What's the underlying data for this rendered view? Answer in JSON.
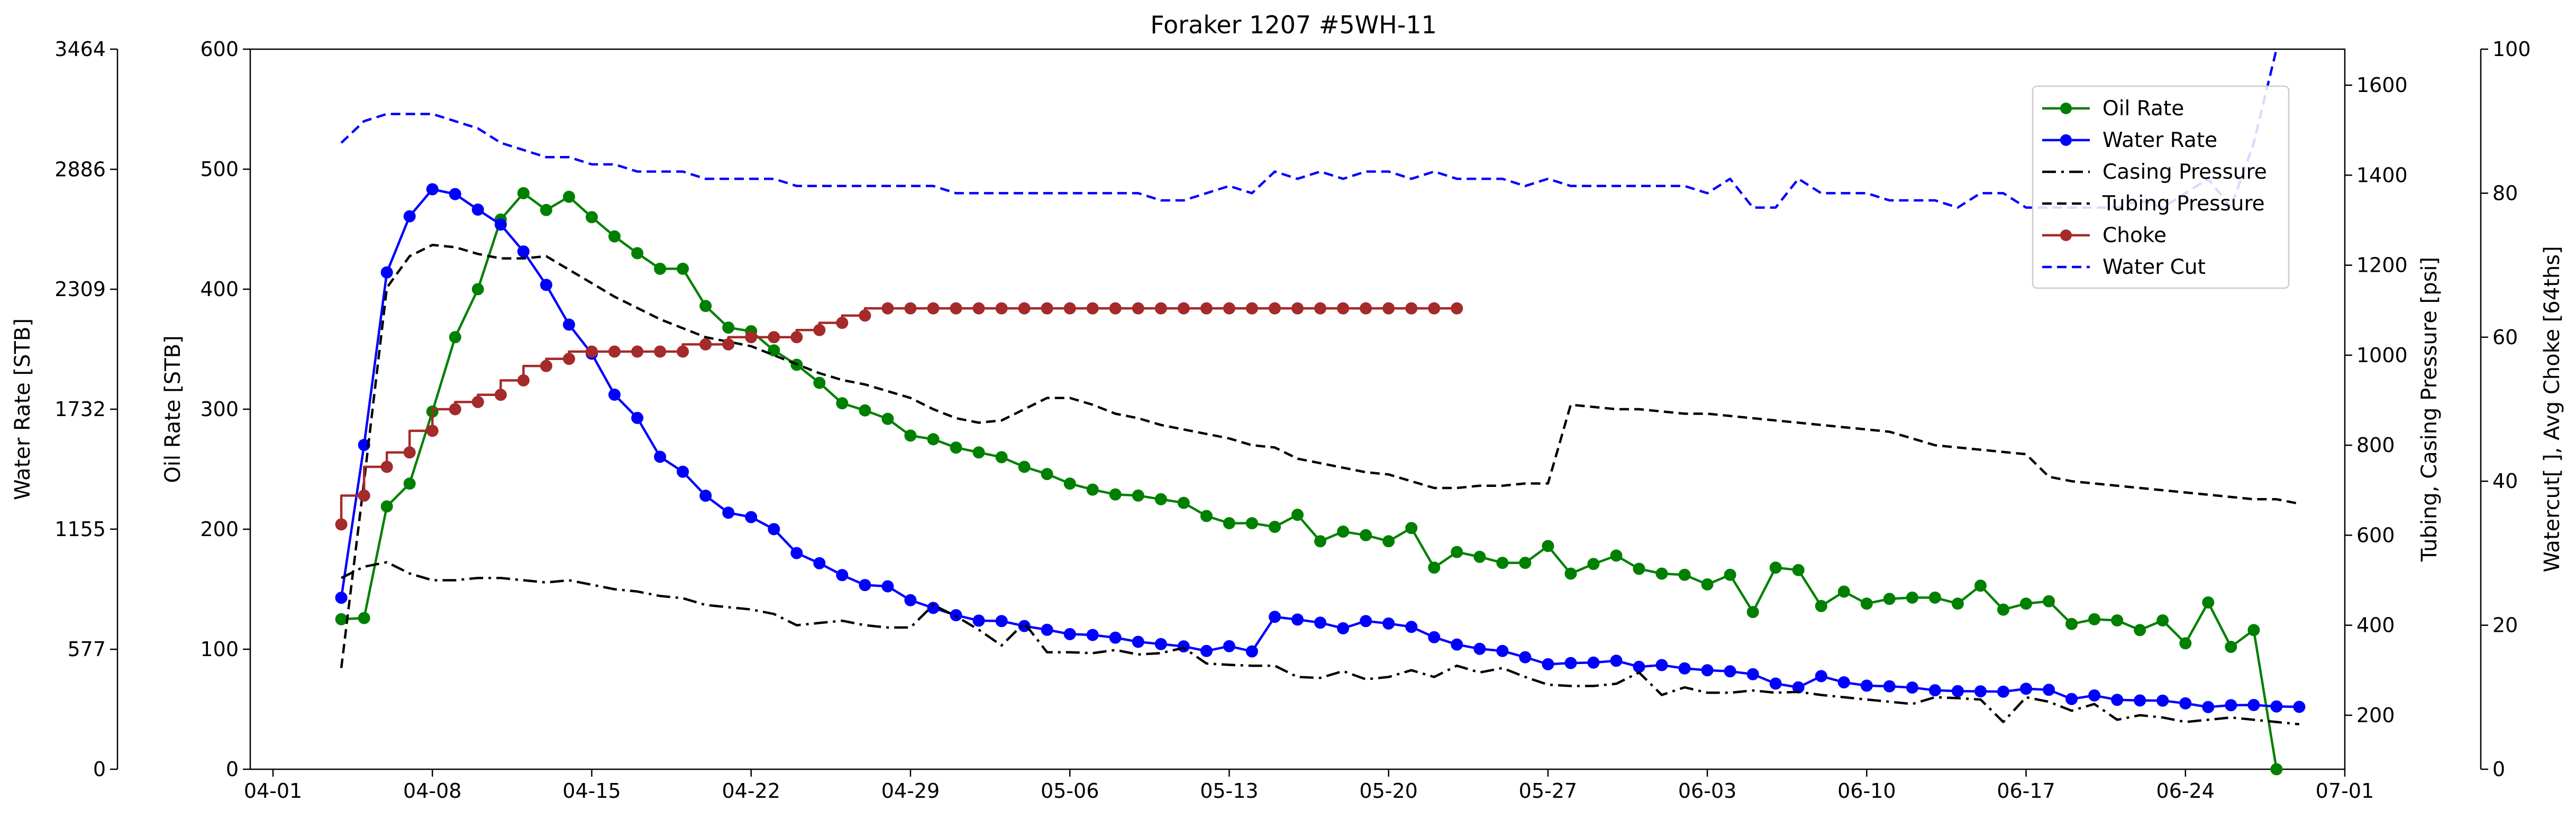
{
  "chart_data": {
    "type": "line",
    "title": "Foraker 1207 #5WH-11",
    "x_axis": {
      "type": "date",
      "range": [
        "2020-03-31",
        "2020-07-01"
      ],
      "ticks": [
        "04-01",
        "04-08",
        "04-15",
        "04-22",
        "04-29",
        "05-06",
        "05-13",
        "05-20",
        "05-27",
        "06-03",
        "06-10",
        "06-17",
        "06-24",
        "07-01"
      ],
      "tick_dates": [
        "2020-04-01",
        "2020-04-08",
        "2020-04-15",
        "2020-04-22",
        "2020-04-29",
        "2020-05-06",
        "2020-05-13",
        "2020-05-20",
        "2020-05-27",
        "2020-06-03",
        "2020-06-10",
        "2020-06-17",
        "2020-06-24",
        "2020-07-01"
      ]
    },
    "y_axes": {
      "oil": {
        "label": "Oil Rate [STB]",
        "range": [
          0,
          600
        ],
        "ticks": [
          "0",
          "100",
          "200",
          "300",
          "400",
          "500",
          "600"
        ]
      },
      "water": {
        "label": "Water Rate [STB]",
        "range": [
          0,
          3464
        ],
        "ticks": [
          "0",
          "577",
          "1155",
          "1732",
          "2309",
          "2886",
          "3464"
        ]
      },
      "pressure": {
        "label": "Tubing, Casing Pressure [psi]",
        "range": [
          80,
          1680
        ],
        "ticks": [
          "200",
          "400",
          "600",
          "800",
          "1000",
          "1200",
          "1400",
          "1600"
        ]
      },
      "watercut": {
        "label": "Watercut[ ], Avg Choke [64ths]",
        "range": [
          0,
          100
        ],
        "ticks": [
          "0",
          "20",
          "40",
          "60",
          "80",
          "100"
        ]
      }
    },
    "legend": {
      "placement": "upper-right",
      "entries": [
        "Oil Rate",
        "Water Rate",
        "Casing Pressure",
        "Tubing Pressure",
        "Choke",
        "Water Cut"
      ]
    },
    "series": [
      {
        "name": "Oil Rate",
        "axis": "oil",
        "color": "#008000",
        "style": "line-marker",
        "start": "2020-04-04",
        "values": [
          125,
          126,
          219,
          238,
          298,
          360,
          400,
          458,
          480,
          466,
          477,
          460,
          444,
          430,
          417,
          417,
          386,
          368,
          365,
          349,
          337,
          322,
          305,
          299,
          292,
          278,
          275,
          268,
          264,
          260,
          252,
          246,
          238,
          233,
          229,
          228,
          225,
          222,
          211,
          205,
          205,
          202,
          212,
          190,
          198,
          195,
          190,
          201,
          168,
          181,
          177,
          172,
          172,
          186,
          163,
          171,
          178,
          167,
          163,
          162,
          154,
          162,
          131,
          168,
          166,
          136,
          148,
          138,
          142,
          143,
          143,
          138,
          153,
          133,
          138,
          140,
          121,
          125,
          124,
          116,
          124,
          105,
          139,
          102,
          116,
          0
        ]
      },
      {
        "name": "Water Rate",
        "axis": "water",
        "color": "#0000ff",
        "style": "line-marker",
        "start": "2020-04-04",
        "values": [
          825,
          1560,
          2390,
          2660,
          2790,
          2767,
          2692,
          2620,
          2491,
          2330,
          2139,
          1999,
          1802,
          1690,
          1503,
          1431,
          1316,
          1234,
          1213,
          1155,
          1040,
          991,
          934,
          886,
          880,
          813,
          776,
          741,
          715,
          713,
          689,
          671,
          650,
          646,
          633,
          613,
          602,
          591,
          569,
          592,
          567,
          733,
          720,
          705,
          678,
          713,
          701,
          685,
          635,
          600,
          579,
          569,
          539,
          505,
          511,
          513,
          522,
          493,
          501,
          485,
          476,
          471,
          457,
          412,
          394,
          448,
          418,
          402,
          399,
          393,
          380,
          376,
          375,
          373,
          387,
          382,
          338,
          355,
          334,
          331,
          330,
          317,
          299,
          308,
          309,
          302,
          300
        ]
      },
      {
        "name": "Casing Pressure",
        "axis": "pressure",
        "color": "#000000",
        "style": "dash-dot",
        "start": "2020-04-04",
        "values": [
          505,
          530,
          540,
          515,
          500,
          500,
          505,
          505,
          500,
          495,
          500,
          490,
          480,
          475,
          465,
          460,
          445,
          440,
          435,
          425,
          400,
          405,
          410,
          400,
          395,
          395,
          445,
          420,
          390,
          355,
          405,
          340,
          340,
          338,
          345,
          335,
          338,
          350,
          315,
          312,
          310,
          310,
          285,
          283,
          298,
          280,
          285,
          300,
          285,
          310,
          295,
          305,
          285,
          268,
          265,
          265,
          270,
          295,
          245,
          262,
          250,
          250,
          255,
          250,
          252,
          245,
          240,
          235,
          230,
          225,
          240,
          238,
          235,
          185,
          240,
          230,
          210,
          225,
          190,
          200,
          195,
          185,
          190,
          195,
          190,
          185,
          180
        ]
      },
      {
        "name": "Tubing Pressure",
        "axis": "pressure",
        "color": "#000000",
        "style": "dashed",
        "start": "2020-04-04",
        "values": [
          305,
          720,
          1150,
          1220,
          1245,
          1240,
          1225,
          1215,
          1215,
          1220,
          1190,
          1160,
          1130,
          1105,
          1080,
          1060,
          1040,
          1030,
          1020,
          1000,
          980,
          960,
          945,
          935,
          920,
          905,
          880,
          860,
          850,
          855,
          880,
          905,
          905,
          890,
          870,
          860,
          845,
          835,
          825,
          815,
          800,
          795,
          770,
          760,
          750,
          740,
          735,
          720,
          705,
          705,
          710,
          710,
          715,
          715,
          890,
          885,
          880,
          880,
          875,
          870,
          870,
          865,
          860,
          855,
          850,
          845,
          840,
          835,
          830,
          815,
          800,
          795,
          790,
          785,
          780,
          730,
          720,
          715,
          710,
          705,
          700,
          695,
          690,
          685,
          680,
          680,
          670
        ]
      },
      {
        "name": "Choke",
        "axis": "watercut",
        "color": "#a52a2a",
        "style": "step-marker",
        "start": "2020-04-04",
        "values": [
          34,
          38,
          42,
          44,
          47,
          50,
          51,
          52,
          54,
          56,
          57,
          58,
          58,
          58,
          58,
          58,
          59,
          59,
          60,
          60,
          60,
          61,
          62,
          63,
          64,
          64,
          64,
          64,
          64,
          64,
          64,
          64,
          64,
          64,
          64,
          64,
          64,
          64,
          64,
          64,
          64,
          64,
          64,
          64,
          64,
          64,
          64,
          64,
          64,
          64
        ]
      },
      {
        "name": "Water Cut",
        "axis": "watercut",
        "color": "#0000ff",
        "style": "dashed",
        "start": "2020-04-04",
        "values": [
          87,
          90,
          91,
          91,
          91,
          90,
          89,
          87,
          86,
          85,
          85,
          84,
          84,
          83,
          83,
          83,
          82,
          82,
          82,
          82,
          81,
          81,
          81,
          81,
          81,
          81,
          81,
          80,
          80,
          80,
          80,
          80,
          80,
          80,
          80,
          80,
          79,
          79,
          80,
          81,
          80,
          83,
          82,
          83,
          82,
          83,
          83,
          82,
          83,
          82,
          82,
          82,
          81,
          82,
          81,
          81,
          81,
          81,
          81,
          81,
          80,
          82,
          78,
          78,
          82,
          80,
          80,
          80,
          79,
          79,
          79,
          78,
          80,
          80,
          78,
          78,
          78,
          78,
          78,
          79,
          78,
          80,
          82,
          78,
          87,
          100
        ]
      }
    ]
  }
}
